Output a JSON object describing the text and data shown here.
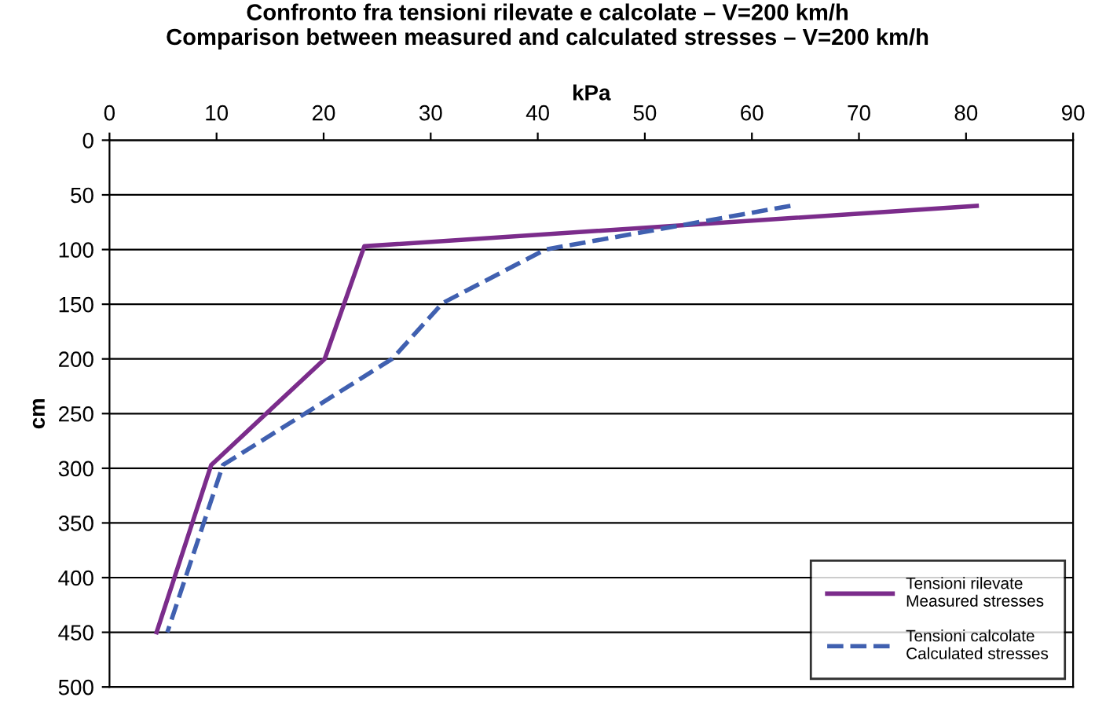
{
  "chart_data": {
    "type": "line",
    "title": "Confronto fra tensioni rilevate e calcolate – V=200 km/h\nComparison between measured and calculated stresses – V=200 km/h",
    "xlabel": "kPa",
    "ylabel": "cm",
    "series": [
      {
        "name": "Tensioni rilevate\nMeasured stresses",
        "color": "#7b2c8b",
        "line_style": "solid",
        "x": [
          81,
          23.8,
          20.1,
          9.5,
          4.4
        ],
        "values": [
          60,
          97,
          200,
          297,
          450
        ]
      },
      {
        "name": "Tensioni calcolate\nCalculated stresses",
        "color": "#4060b0",
        "line_style": "dashed",
        "x": [
          63.6,
          40.7,
          31.1,
          26.4,
          10.6,
          5.4
        ],
        "values": [
          60,
          100,
          149,
          200,
          297,
          450
        ]
      }
    ],
    "xlim": [
      0,
      90
    ],
    "xticks": [
      0,
      10,
      20,
      30,
      40,
      50,
      60,
      70,
      80,
      90
    ],
    "ylim": [
      500,
      0
    ],
    "yticks": [
      0,
      50,
      100,
      150,
      200,
      250,
      300,
      350,
      400,
      450,
      500
    ],
    "grid": "y",
    "legend": "bottom right",
    "marker": "none"
  }
}
